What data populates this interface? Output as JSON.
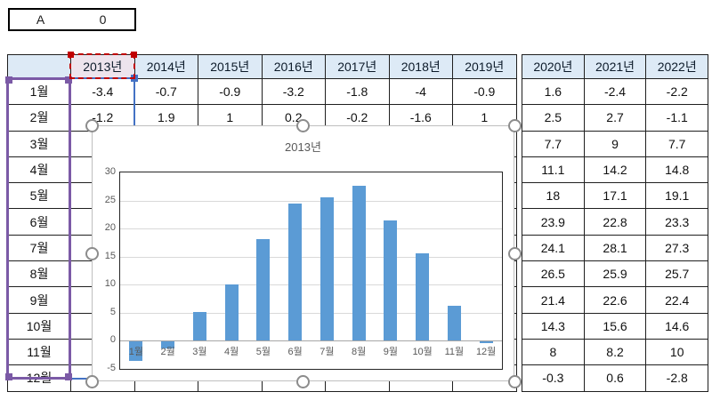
{
  "name_box": {
    "name_label": "A",
    "value_label": "0",
    "fill": "#FFC000"
  },
  "table": {
    "corner_label": "",
    "year_headers_left": [
      "2013년",
      "2014년",
      "2015년",
      "2016년",
      "2017년",
      "2018년",
      "2019년"
    ],
    "year_headers_right": [
      "2020년",
      "2021년",
      "2022년"
    ],
    "selected_year_header": "2013년",
    "rows": [
      {
        "label": "1월",
        "left": [
          "-3.4",
          "-0.7",
          "-0.9",
          "-3.2",
          "-1.8",
          "-4",
          "-0.9"
        ],
        "right": [
          "1.6",
          "-2.4",
          "-2.2"
        ]
      },
      {
        "label": "2월",
        "left": [
          "-1.2",
          "1.9",
          "1",
          "0.2",
          "-0.2",
          "-1.6",
          "1"
        ],
        "right": [
          "2.5",
          "2.7",
          "-1.1"
        ]
      },
      {
        "label": "3월",
        "left": [
          "",
          "",
          "",
          "",
          "",
          "",
          ""
        ],
        "right": [
          "7.7",
          "9",
          "7.7"
        ]
      },
      {
        "label": "4월",
        "left": [
          "",
          "",
          "",
          "",
          "",
          "",
          ""
        ],
        "right": [
          "11.1",
          "14.2",
          "14.8"
        ]
      },
      {
        "label": "5월",
        "left": [
          "",
          "",
          "",
          "",
          "",
          "",
          ""
        ],
        "right": [
          "18",
          "17.1",
          "19.1"
        ]
      },
      {
        "label": "6월",
        "left": [
          "",
          "",
          "",
          "",
          "",
          "",
          ""
        ],
        "right": [
          "23.9",
          "22.8",
          "23.3"
        ]
      },
      {
        "label": "7월",
        "left": [
          "",
          "",
          "",
          "",
          "",
          "",
          ""
        ],
        "right": [
          "24.1",
          "28.1",
          "27.3"
        ]
      },
      {
        "label": "8월",
        "left": [
          "",
          "",
          "",
          "",
          "",
          "",
          ""
        ],
        "right": [
          "26.5",
          "25.9",
          "25.7"
        ]
      },
      {
        "label": "9월",
        "left": [
          "",
          "",
          "",
          "",
          "",
          "",
          ""
        ],
        "right": [
          "21.4",
          "22.6",
          "22.4"
        ]
      },
      {
        "label": "10월",
        "left": [
          "",
          "",
          "",
          "",
          "",
          "",
          ""
        ],
        "right": [
          "14.3",
          "15.6",
          "14.6"
        ]
      },
      {
        "label": "11월",
        "left": [
          "",
          "",
          "",
          "",
          "",
          "",
          ""
        ],
        "right": [
          "8",
          "8.2",
          "10"
        ]
      },
      {
        "label": "12월",
        "left": [
          "",
          "",
          "",
          "",
          "",
          "",
          ""
        ],
        "right": [
          "-0.3",
          "0.6",
          "-2.8"
        ]
      }
    ]
  },
  "chart_data": {
    "type": "bar",
    "title": "2013년",
    "categories": [
      "1월",
      "2월",
      "3월",
      "4월",
      "5월",
      "6월",
      "7월",
      "8월",
      "9월",
      "10월",
      "11월",
      "12월"
    ],
    "values": [
      -3.4,
      -1.2,
      5.1,
      10.1,
      18.2,
      24.4,
      25.5,
      27.7,
      21.5,
      15.6,
      6.2,
      -0.3
    ],
    "ylim": [
      -5,
      30
    ],
    "yticks": [
      30,
      25,
      20,
      15,
      10,
      5,
      0,
      -5
    ],
    "bar_color": "#5B9BD5",
    "grid": true,
    "legend": "none"
  },
  "colors": {
    "header_fill": "#DDEAF6",
    "month_column_fill": "#F2EDF7",
    "selected_column_fill": "#E9F0F9",
    "selected_header_fill": "#EDE4ED",
    "selection_red": "#C00000",
    "selection_blue": "#4472C4",
    "selection_purple": "#7B5AA6",
    "name_box_fill": "#FFC000",
    "bar_color": "#5B9BD5"
  }
}
